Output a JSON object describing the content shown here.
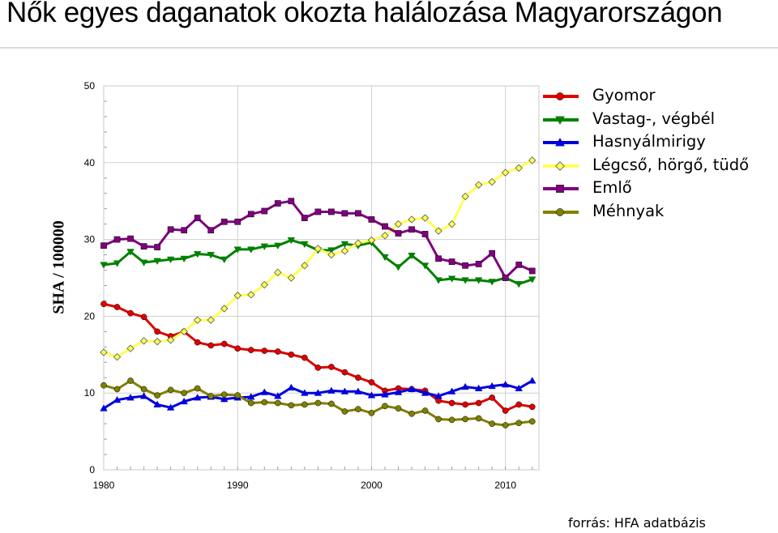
{
  "title": "Nők egyes daganatok okozta halálozása Magyarországon",
  "source": "forrás: HFA adatbázis",
  "chart_data": {
    "type": "line",
    "title": "Nők egyes daganatok okozta halálozása Magyarországon",
    "xlabel": "",
    "ylabel": "SHA / 100000",
    "xlim": [
      1980,
      2012.5
    ],
    "ylim": [
      0,
      50
    ],
    "x_ticks": [
      1980,
      1990,
      2000,
      2010
    ],
    "y_ticks": [
      0,
      10,
      20,
      30,
      40,
      50
    ],
    "grid": true,
    "legend_position": "right",
    "x": [
      1980,
      1981,
      1982,
      1983,
      1984,
      1985,
      1986,
      1987,
      1988,
      1989,
      1990,
      1991,
      1992,
      1993,
      1994,
      1995,
      1996,
      1997,
      1998,
      1999,
      2000,
      2001,
      2002,
      2003,
      2004,
      2005,
      2006,
      2007,
      2008,
      2009,
      2010,
      2011,
      2012
    ],
    "series": [
      {
        "name": "Gyomor",
        "color": "#e00000",
        "marker": "circle",
        "values": [
          21.6,
          21.2,
          20.4,
          19.9,
          18.0,
          17.4,
          18.0,
          16.6,
          16.2,
          16.4,
          15.8,
          15.6,
          15.5,
          15.4,
          15.0,
          14.6,
          13.3,
          13.4,
          12.7,
          12.0,
          11.4,
          10.3,
          10.6,
          10.5,
          10.3,
          9.0,
          8.7,
          8.5,
          8.7,
          9.4,
          7.7,
          8.5,
          8.2
        ]
      },
      {
        "name": "Vastag-, végbél",
        "color": "#008000",
        "marker": "triangle-down",
        "values": [
          26.7,
          26.9,
          28.4,
          27.0,
          27.2,
          27.4,
          27.5,
          28.1,
          28.0,
          27.4,
          28.7,
          28.7,
          29.1,
          29.2,
          29.9,
          29.4,
          28.6,
          28.6,
          29.4,
          29.2,
          29.6,
          27.7,
          26.4,
          27.9,
          26.6,
          24.7,
          24.9,
          24.7,
          24.7,
          24.5,
          25.0,
          24.2,
          24.8
        ]
      },
      {
        "name": "Hasnyálmirigy",
        "color": "#0000dd",
        "marker": "triangle-up",
        "values": [
          8.0,
          9.1,
          9.4,
          9.6,
          8.5,
          8.1,
          8.9,
          9.4,
          9.5,
          9.2,
          9.4,
          9.5,
          10.1,
          9.6,
          10.7,
          10.0,
          10.0,
          10.3,
          10.2,
          10.2,
          9.7,
          9.8,
          10.1,
          10.5,
          10.0,
          9.6,
          10.2,
          10.8,
          10.6,
          10.9,
          11.1,
          10.6,
          11.6
        ]
      },
      {
        "name": "Légcső, hörgő, tüdő",
        "color": "#ffff55",
        "marker": "diamond",
        "values": [
          15.3,
          14.7,
          15.8,
          16.8,
          16.7,
          16.9,
          18.0,
          19.5,
          19.5,
          21.0,
          22.7,
          22.8,
          24.1,
          25.7,
          25.0,
          26.6,
          28.8,
          28.0,
          28.5,
          29.5,
          29.9,
          30.5,
          32.0,
          32.6,
          32.8,
          31.1,
          32.0,
          35.6,
          37.1,
          37.5,
          38.7,
          39.3,
          40.3
        ]
      },
      {
        "name": "Emlő",
        "color": "#800080",
        "marker": "square",
        "values": [
          29.2,
          30.0,
          30.1,
          29.1,
          29.0,
          31.3,
          31.2,
          32.8,
          31.2,
          32.3,
          32.3,
          33.3,
          33.7,
          34.7,
          35.0,
          32.8,
          33.6,
          33.6,
          33.4,
          33.4,
          32.6,
          31.7,
          30.8,
          31.3,
          30.7,
          27.5,
          27.1,
          26.6,
          26.8,
          28.2,
          25.0,
          26.7,
          25.9
        ]
      },
      {
        "name": "Méhnyak",
        "color": "#808000",
        "marker": "circle",
        "values": [
          11.0,
          10.5,
          11.6,
          10.5,
          9.7,
          10.4,
          10.0,
          10.6,
          9.6,
          9.8,
          9.7,
          8.7,
          8.8,
          8.7,
          8.4,
          8.5,
          8.7,
          8.6,
          7.6,
          7.9,
          7.4,
          8.3,
          8.0,
          7.3,
          7.7,
          6.6,
          6.5,
          6.6,
          6.7,
          6.0,
          5.8,
          6.1,
          6.3
        ]
      }
    ]
  }
}
